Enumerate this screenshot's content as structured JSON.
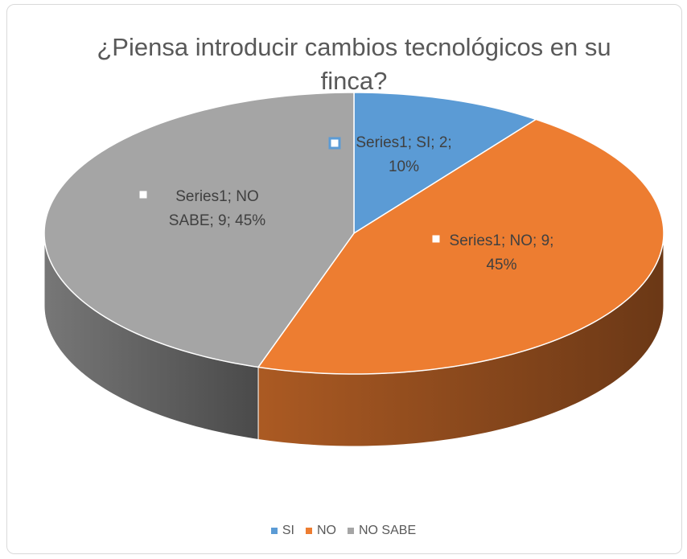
{
  "chart_data": {
    "type": "pie3d",
    "title": "¿Piensa introducir cambios tecnológicos en su finca?",
    "categories": [
      "SI",
      "NO",
      "NO SABE"
    ],
    "series": [
      {
        "name": "Series1",
        "values": [
          2,
          9,
          9
        ],
        "value_labels": [
          "Series1; SI; 2; 10%",
          "Series1; NO; 9; 45%",
          "Series1; NO SABE; 9; 45%"
        ],
        "colors": [
          "#5b9bd5",
          "#ed7d31",
          "#a5a5a5"
        ]
      }
    ],
    "legend": "bottom"
  }
}
